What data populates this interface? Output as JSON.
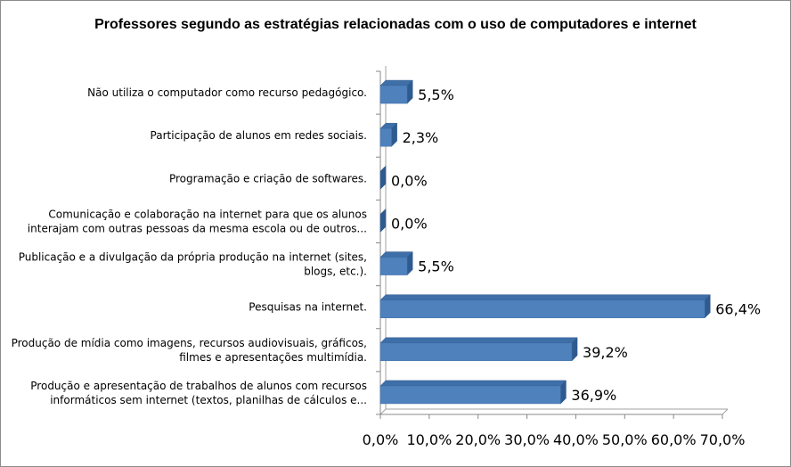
{
  "chart_data": {
    "type": "bar",
    "orientation": "horizontal",
    "title": "Professores segundo as estratégias relacionadas com o uso de computadores e internet",
    "xlabel": "",
    "ylabel": "",
    "xlim": [
      0,
      70
    ],
    "x_ticks": [
      "0,0%",
      "10,0%",
      "20,0%",
      "30,0%",
      "40,0%",
      "50,0%",
      "60,0%",
      "70,0%"
    ],
    "grid": false,
    "legend": "none",
    "bar_color": "#4f81bd",
    "bar_top_color": "#3f6fa8",
    "bar_side_color": "#2f5a8f",
    "categories": [
      {
        "lines": [
          "Não utiliza o computador como recurso pedagógico."
        ],
        "value": 5.5,
        "label": "5,5%"
      },
      {
        "lines": [
          "Participação de alunos em redes sociais."
        ],
        "value": 2.3,
        "label": "2,3%"
      },
      {
        "lines": [
          "Programação e criação de softwares."
        ],
        "value": 0.0,
        "label": "0,0%"
      },
      {
        "lines": [
          "Comunicação e colaboração na internet para que os alunos",
          "interajam com outras pessoas da mesma escola ou de outros..."
        ],
        "value": 0.0,
        "label": "0,0%"
      },
      {
        "lines": [
          "Publicação e a divulgação da própria produção na internet (sites,",
          "blogs, etc.)."
        ],
        "value": 5.5,
        "label": "5,5%"
      },
      {
        "lines": [
          "Pesquisas na internet."
        ],
        "value": 66.4,
        "label": "66,4%"
      },
      {
        "lines": [
          "Produção de mídia como imagens, recursos audiovisuais, gráficos,",
          "filmes e apresentações multimídia."
        ],
        "value": 39.2,
        "label": "39,2%"
      },
      {
        "lines": [
          "Produção e apresentação de trabalhos de alunos com recursos",
          "informáticos sem internet (textos, planilhas de cálculos e..."
        ],
        "value": 36.9,
        "label": "36,9%"
      }
    ]
  }
}
